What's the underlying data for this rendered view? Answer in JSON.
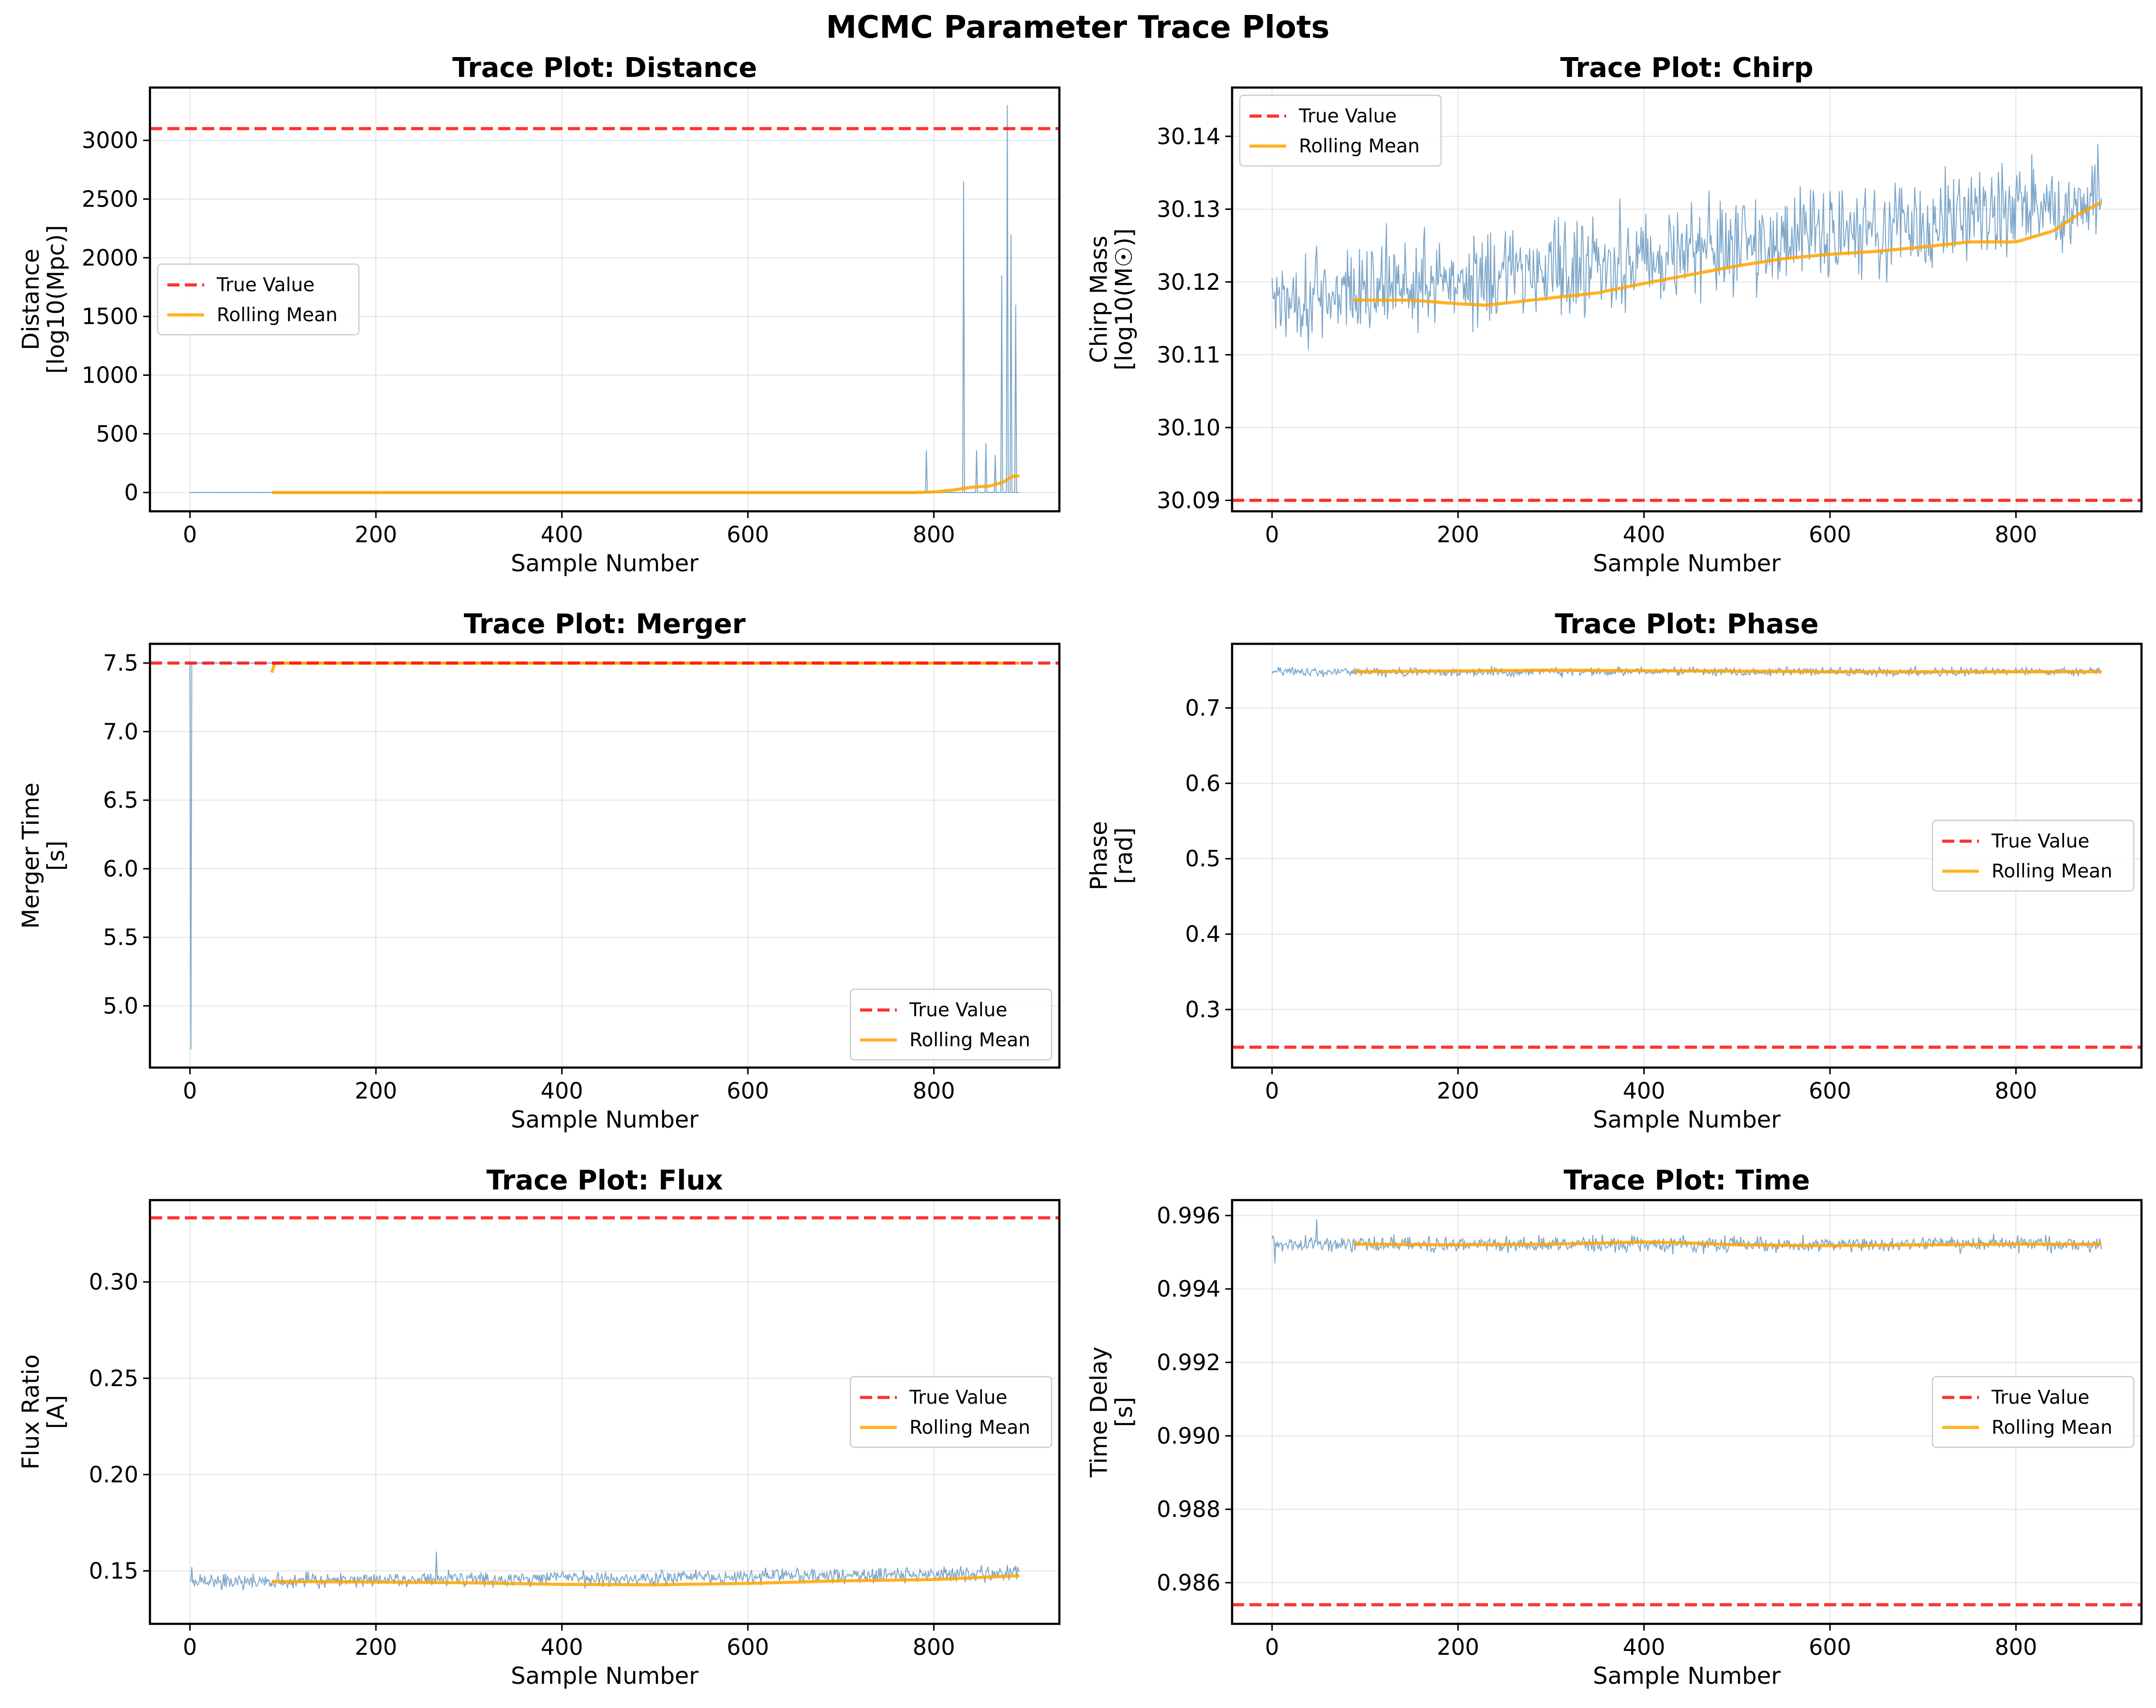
{
  "chart_data": {
    "title": "MCMC Parameter Trace Plots",
    "type": "line",
    "panels": [
      {
        "title": "Trace Plot: Distance",
        "type": "line",
        "xlabel": "Sample Number",
        "ylabel": [
          "Distance",
          "[log10(Mpc)]"
        ],
        "xlim": [
          -43,
          935
        ],
        "ylim": [
          -160,
          3450
        ],
        "xticks": [
          0,
          200,
          400,
          600,
          800
        ],
        "yticks": [
          0,
          500,
          1000,
          1500,
          2000,
          2500,
          3000
        ],
        "ytick_decimals": 0,
        "true_value": 3100,
        "legend_loc": "center-left",
        "legend": [
          "True Value",
          "Rolling Mean"
        ],
        "grid": true,
        "trace": {
          "n": 893,
          "base": 0,
          "noise": 1.5,
          "drift": 0,
          "burn": 0,
          "spikes": [
            [
              792,
              360
            ],
            [
              832,
              2650
            ],
            [
              846,
              360
            ],
            [
              856,
              420
            ],
            [
              866,
              320
            ],
            [
              873,
              1850
            ],
            [
              879,
              3300
            ],
            [
              883,
              2200
            ],
            [
              888,
              1600
            ]
          ]
        },
        "rolling_mean": {
          "x": [
            88,
            780,
            800,
            820,
            840,
            860,
            875,
            885,
            893
          ],
          "y": [
            0,
            0,
            5,
            20,
            45,
            55,
            90,
            140,
            140
          ]
        }
      },
      {
        "title": "Trace Plot: Chirp",
        "type": "line",
        "xlabel": "Sample Number",
        "ylabel": [
          "Chirp Mass",
          "[log10(M☉)]"
        ],
        "xlim": [
          -43,
          935
        ],
        "ylim": [
          30.0885,
          30.1467
        ],
        "xticks": [
          0,
          200,
          400,
          600,
          800
        ],
        "yticks": [
          30.09,
          30.1,
          30.11,
          30.12,
          30.13,
          30.14
        ],
        "ytick_decimals": 2,
        "true_value": 30.09,
        "legend_loc": "upper-left",
        "legend": [
          "True Value",
          "Rolling Mean"
        ],
        "grid": true,
        "trace": {
          "n": 893,
          "base": 30.1175,
          "noise": 0.0055,
          "drift": 0.0135,
          "burn": 0,
          "spikes": []
        },
        "rolling_mean": {
          "x": [
            88,
            150,
            200,
            230,
            300,
            350,
            400,
            450,
            500,
            550,
            600,
            650,
            700,
            750,
            800,
            840,
            870,
            893
          ],
          "y": [
            30.1175,
            30.1175,
            30.117,
            30.1168,
            30.1178,
            30.1185,
            30.1198,
            30.121,
            30.1222,
            30.1232,
            30.1238,
            30.1242,
            30.1248,
            30.1255,
            30.1255,
            30.127,
            30.1295,
            30.131
          ]
        }
      },
      {
        "title": "Trace Plot: Merger",
        "type": "line",
        "xlabel": "Sample Number",
        "ylabel": [
          "Merger Time",
          "[s]"
        ],
        "xlim": [
          -43,
          935
        ],
        "ylim": [
          4.55,
          7.64
        ],
        "xticks": [
          0,
          200,
          400,
          600,
          800
        ],
        "yticks": [
          5.0,
          5.5,
          6.0,
          6.5,
          7.0,
          7.5
        ],
        "ytick_decimals": 1,
        "true_value": 7.5,
        "legend_loc": "lower-right",
        "legend": [
          "True Value",
          "Rolling Mean"
        ],
        "grid": true,
        "trace": {
          "n": 893,
          "base": 7.5,
          "noise": 0.0,
          "drift": 0,
          "burn": 0,
          "spikes": [
            [
              1,
              4.68
            ]
          ]
        },
        "rolling_mean": {
          "x": [
            88,
            89,
            93,
            893
          ],
          "y": [
            7.43,
            7.49,
            7.5,
            7.5
          ]
        }
      },
      {
        "title": "Trace Plot: Phase",
        "type": "line",
        "xlabel": "Sample Number",
        "ylabel": [
          "Phase",
          "[rad]"
        ],
        "xlim": [
          -43,
          935
        ],
        "ylim": [
          0.223,
          0.785
        ],
        "xticks": [
          0,
          200,
          400,
          600,
          800
        ],
        "yticks": [
          0.3,
          0.4,
          0.5,
          0.6,
          0.7
        ],
        "ytick_decimals": 1,
        "true_value": 0.25,
        "legend_loc": "center-right",
        "legend": [
          "True Value",
          "Rolling Mean"
        ],
        "grid": true,
        "trace": {
          "n": 893,
          "base": 0.748,
          "noise": 0.005,
          "drift": 0,
          "burn": 0,
          "spikes": []
        },
        "rolling_mean": {
          "x": [
            88,
            300,
            450,
            600,
            893
          ],
          "y": [
            0.748,
            0.75,
            0.749,
            0.748,
            0.748
          ]
        }
      },
      {
        "title": "Trace Plot: Flux",
        "type": "line",
        "xlabel": "Sample Number",
        "ylabel": [
          "Flux Ratio",
          "[A]"
        ],
        "xlim": [
          -43,
          935
        ],
        "ylim": [
          0.1225,
          0.3425
        ],
        "xticks": [
          0,
          200,
          400,
          600,
          800
        ],
        "yticks": [
          0.15,
          0.2,
          0.25,
          0.3
        ],
        "ytick_decimals": 2,
        "true_value": 0.3333,
        "legend_loc": "center-right",
        "legend": [
          "True Value",
          "Rolling Mean"
        ],
        "grid": true,
        "trace": {
          "n": 893,
          "base": 0.1445,
          "noise": 0.0035,
          "drift": 0.004,
          "burn": 0,
          "spikes": [
            [
              2,
              0.152
            ],
            [
              265,
              0.16
            ]
          ]
        },
        "rolling_mean": {
          "x": [
            88,
            200,
            300,
            400,
            500,
            600,
            700,
            800,
            860,
            893
          ],
          "y": [
            0.1445,
            0.1442,
            0.1438,
            0.143,
            0.1428,
            0.1435,
            0.1448,
            0.1455,
            0.1468,
            0.1475
          ]
        }
      },
      {
        "title": "Trace Plot: Time",
        "type": "line",
        "xlabel": "Sample Number",
        "ylabel": [
          "Time Delay",
          "[s]"
        ],
        "xlim": [
          -43,
          935
        ],
        "ylim": [
          0.98488,
          0.99642
        ],
        "xticks": [
          0,
          200,
          400,
          600,
          800
        ],
        "yticks": [
          0.986,
          0.988,
          0.99,
          0.992,
          0.994,
          0.996
        ],
        "ytick_decimals": 3,
        "true_value": 0.9854,
        "legend_loc": "center-right",
        "legend": [
          "True Value",
          "Rolling Mean"
        ],
        "grid": true,
        "trace": {
          "n": 893,
          "base": 0.99522,
          "noise": 0.00018,
          "drift": 0,
          "burn": 0,
          "spikes": [
            [
              3,
              0.9947
            ],
            [
              48,
              0.9959
            ]
          ]
        },
        "rolling_mean": {
          "x": [
            88,
            200,
            300,
            400,
            450,
            500,
            600,
            700,
            800,
            893
          ],
          "y": [
            0.99522,
            0.9952,
            0.99522,
            0.99528,
            0.99525,
            0.9952,
            0.99518,
            0.9952,
            0.99522,
            0.99522
          ]
        }
      }
    ]
  },
  "colors": {
    "trace": "#4682b4",
    "rolling_mean": "#ffa500",
    "true_value": "#ff0000"
  }
}
